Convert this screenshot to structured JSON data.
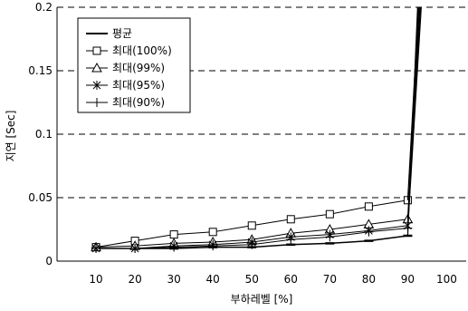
{
  "chart_data": {
    "type": "line",
    "x": [
      10,
      20,
      30,
      40,
      50,
      60,
      70,
      80,
      90
    ],
    "xlim": [
      0,
      105
    ],
    "ylim": [
      0,
      0.2
    ],
    "xticks": [
      "10",
      "20",
      "30",
      "40",
      "50",
      "60",
      "70",
      "80",
      "90",
      "100"
    ],
    "yticks": [
      "0",
      "0.05",
      "0.1",
      "0.15",
      "0.2"
    ],
    "xlabel": "부하레벨 [%]",
    "ylabel": "지연 [Sec]",
    "grid": "horizontal dashed",
    "legend_position": "top-left",
    "series": [
      {
        "name": "평균",
        "marker": "dash",
        "values": [
          0.01,
          0.01,
          0.01,
          0.011,
          0.011,
          0.013,
          0.014,
          0.016,
          0.02
        ]
      },
      {
        "name": "최대(100%)",
        "marker": "square",
        "values": [
          0.011,
          0.016,
          0.021,
          0.023,
          0.028,
          0.033,
          0.037,
          0.043,
          0.048
        ]
      },
      {
        "name": "최대(99%)",
        "marker": "triangle",
        "values": [
          0.011,
          0.012,
          0.014,
          0.015,
          0.017,
          0.022,
          0.025,
          0.029,
          0.033
        ]
      },
      {
        "name": "최대(95%)",
        "marker": "asterisk",
        "values": [
          0.01,
          0.01,
          0.012,
          0.013,
          0.015,
          0.019,
          0.021,
          0.024,
          0.028
        ]
      },
      {
        "name": "최대(90%)",
        "marker": "plus",
        "values": [
          0.01,
          0.01,
          0.011,
          0.012,
          0.013,
          0.017,
          0.019,
          0.023,
          0.026
        ]
      }
    ],
    "spike": {
      "from_x": 90,
      "to_x": 93,
      "to_y": 0.2
    }
  }
}
